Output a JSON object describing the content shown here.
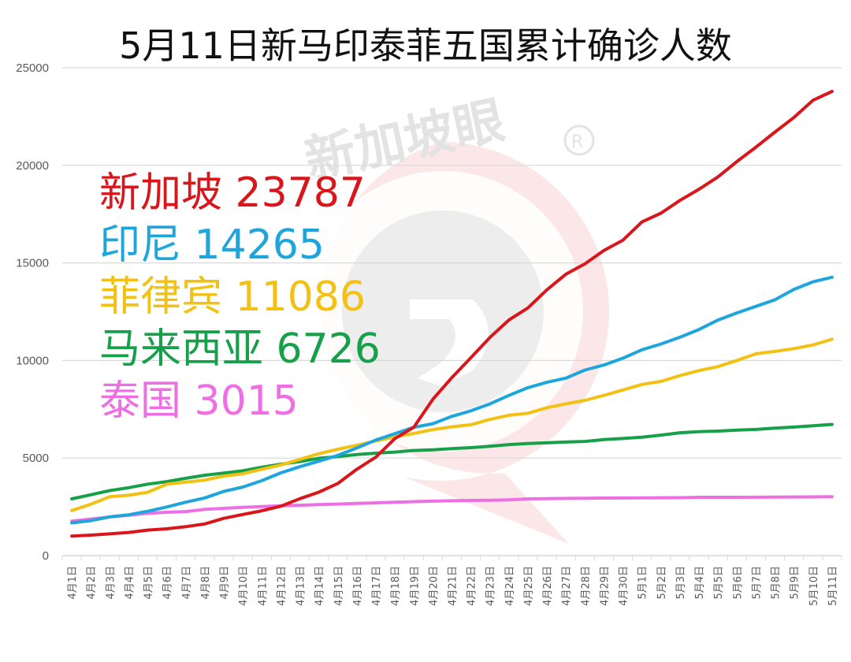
{
  "title": "5月11日新马印泰菲五国累计确诊人数",
  "watermark": {
    "text": "新加坡眼",
    "registered": "®"
  },
  "legend": [
    {
      "name": "新加坡",
      "value": "23787",
      "color": "#d9161b"
    },
    {
      "name": "印尼",
      "value": "14265",
      "color": "#1ea6dc"
    },
    {
      "name": "菲律宾",
      "value": "11086",
      "color": "#f2c114"
    },
    {
      "name": "马来西亚",
      "value": "6726",
      "color": "#17a04a"
    },
    {
      "name": "泰国",
      "value": "3015",
      "color": "#ee6fe4"
    }
  ],
  "chart_data": {
    "type": "line",
    "title": "5月11日新马印泰菲五国累计确诊人数",
    "xlabel": "",
    "ylabel": "",
    "ylim": [
      0,
      25000
    ],
    "yticks": [
      0,
      5000,
      10000,
      15000,
      20000,
      25000
    ],
    "grid": true,
    "legend_position": "upper-left (inline colored text)",
    "categories": [
      "4月1日",
      "4月2日",
      "4月3日",
      "4月4日",
      "4月5日",
      "4月6日",
      "4月7日",
      "4月8日",
      "4月9日",
      "4月10日",
      "4月11日",
      "4月12日",
      "4月13日",
      "4月14日",
      "4月15日",
      "4月16日",
      "4月17日",
      "4月18日",
      "4月19日",
      "4月20日",
      "4月21日",
      "4月22日",
      "4月23日",
      "4月24日",
      "4月25日",
      "4月26日",
      "4月27日",
      "4月28日",
      "4月29日",
      "4月30日",
      "5月1日",
      "5月2日",
      "5月3日",
      "5月4日",
      "5月5日",
      "5月6日",
      "5月7日",
      "5月8日",
      "5月9日",
      "5月10日",
      "5月11日"
    ],
    "series": [
      {
        "name": "新加坡",
        "color": "#d9161b",
        "values": [
          1000,
          1049,
          1114,
          1189,
          1309,
          1375,
          1481,
          1623,
          1910,
          2108,
          2299,
          2532,
          2918,
          3252,
          3699,
          4427,
          5050,
          5992,
          6588,
          8014,
          9125,
          10141,
          11178,
          12075,
          12693,
          13624,
          14423,
          14951,
          15641,
          16169,
          17101,
          17548,
          18205,
          18778,
          19410,
          20198,
          20939,
          21707,
          22460,
          23336,
          23787
        ]
      },
      {
        "name": "印尼",
        "color": "#1ea6dc",
        "values": [
          1677,
          1790,
          1986,
          2092,
          2273,
          2491,
          2738,
          2956,
          3293,
          3512,
          3842,
          4241,
          4557,
          4839,
          5136,
          5516,
          5923,
          6248,
          6575,
          6760,
          7135,
          7418,
          7775,
          8211,
          8607,
          8882,
          9096,
          9511,
          9771,
          10118,
          10551,
          10843,
          11192,
          11587,
          12071,
          12438,
          12776,
          13112,
          13645,
          14032,
          14265
        ]
      },
      {
        "name": "菲律宾",
        "color": "#f2c114",
        "values": [
          2311,
          2633,
          3018,
          3094,
          3246,
          3660,
          3764,
          3870,
          4076,
          4195,
          4428,
          4648,
          4932,
          5223,
          5453,
          5660,
          5878,
          6087,
          6259,
          6459,
          6599,
          6710,
          6981,
          7192,
          7294,
          7579,
          7777,
          7958,
          8212,
          8488,
          8772,
          8928,
          9223,
          9485,
          9684,
          10004,
          10343,
          10463,
          10610,
          10794,
          11086
        ]
      },
      {
        "name": "马来西亚",
        "color": "#17a04a",
        "values": [
          2908,
          3116,
          3333,
          3483,
          3662,
          3793,
          3963,
          4119,
          4228,
          4346,
          4530,
          4683,
          4817,
          4987,
          5072,
          5182,
          5251,
          5305,
          5389,
          5425,
          5482,
          5532,
          5603,
          5691,
          5742,
          5780,
          5820,
          5851,
          5945,
          6002,
          6071,
          6176,
          6298,
          6353,
          6383,
          6428,
          6467,
          6535,
          6589,
          6656,
          6726
        ]
      },
      {
        "name": "泰国",
        "color": "#ee6fe4",
        "values": [
          1771,
          1875,
          1978,
          2067,
          2169,
          2220,
          2258,
          2369,
          2423,
          2473,
          2518,
          2551,
          2579,
          2613,
          2643,
          2672,
          2700,
          2733,
          2765,
          2792,
          2811,
          2826,
          2839,
          2854,
          2907,
          2922,
          2931,
          2938,
          2947,
          2954,
          2960,
          2966,
          2969,
          2987,
          2988,
          2989,
          2992,
          3000,
          3004,
          3009,
          3015
        ]
      }
    ]
  }
}
